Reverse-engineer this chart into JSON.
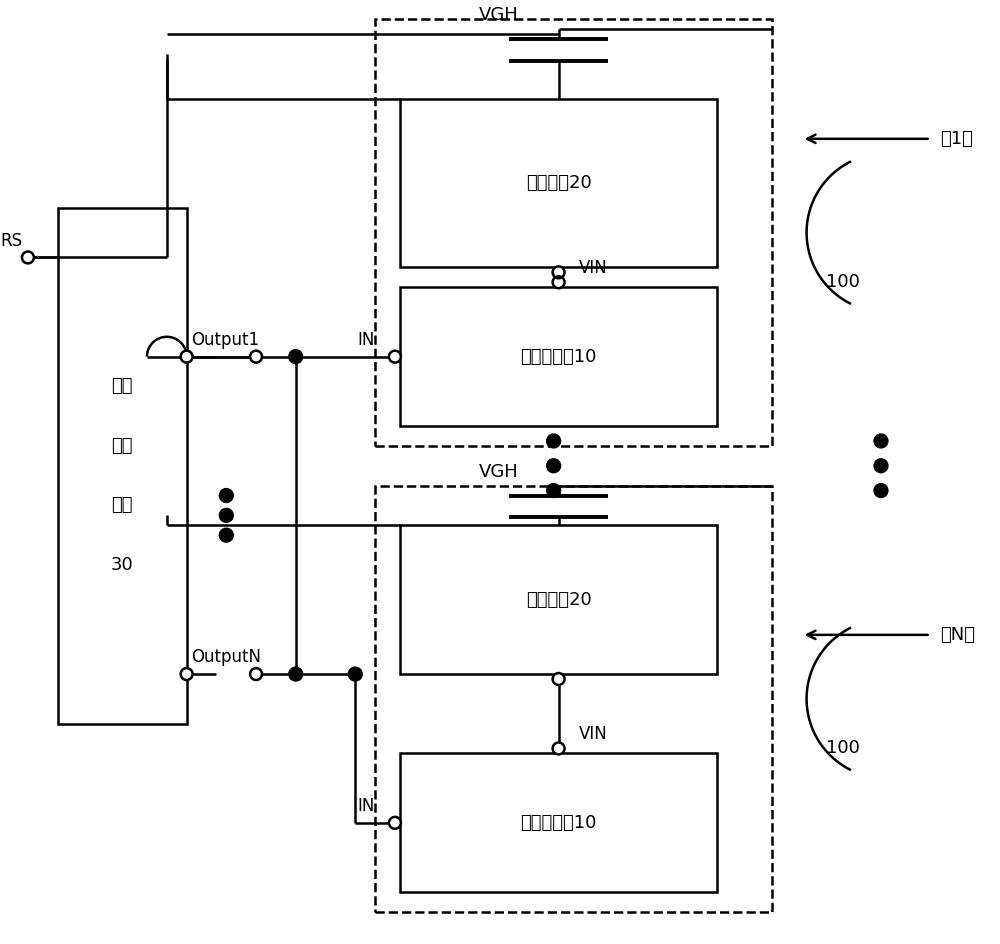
{
  "bg_color": "#ffffff",
  "line_color": "#000000",
  "lw": 1.8,
  "labels": {
    "VGH": "VGH",
    "VIN": "VIN",
    "IN": "IN",
    "RS": "RS",
    "Output1": "Output1",
    "OutputN": "OutputN",
    "control_circuit": "控制电路20",
    "level_shifter": "电平转换器10",
    "timing_chip_line1": "时序",
    "timing_chip_line2": "控制",
    "timing_chip_line3": "芯片",
    "timing_chip_line4": "30",
    "label_1st": "第1个",
    "label_Nth": "第N个",
    "label_100": "100"
  }
}
